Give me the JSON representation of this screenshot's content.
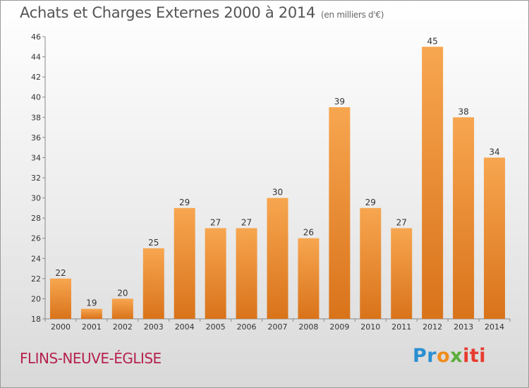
{
  "header": {
    "title": "Achats et Charges Externes 2000 à 2014",
    "subtitle": "(en milliers d'€)"
  },
  "footer": {
    "commune": "FLINS-NEUVE-ÉGLISE",
    "logo": {
      "p1": "Pr",
      "p2": "o",
      "p3": "x",
      "p4": "iti"
    }
  },
  "colors": {
    "bar_light": "#f7a650",
    "bar_dark": "#d9731a",
    "title": "#555555",
    "commune": "#b5224e"
  },
  "chart_data": {
    "type": "bar",
    "title": "Achats et Charges Externes 2000 à 2014",
    "subtitle": "(en milliers d'€)",
    "xlabel": "",
    "ylabel": "",
    "categories": [
      "2000",
      "2001",
      "2002",
      "2003",
      "2004",
      "2005",
      "2006",
      "2007",
      "2008",
      "2009",
      "2010",
      "2011",
      "2012",
      "2013",
      "2014"
    ],
    "values": [
      22,
      19,
      20,
      25,
      29,
      27,
      27,
      30,
      26,
      39,
      29,
      27,
      45,
      38,
      34
    ],
    "ylim": [
      18,
      46
    ],
    "yticks": [
      18,
      20,
      22,
      24,
      26,
      28,
      30,
      32,
      34,
      36,
      38,
      40,
      42,
      44,
      46
    ],
    "grid": false,
    "legend": "none"
  }
}
